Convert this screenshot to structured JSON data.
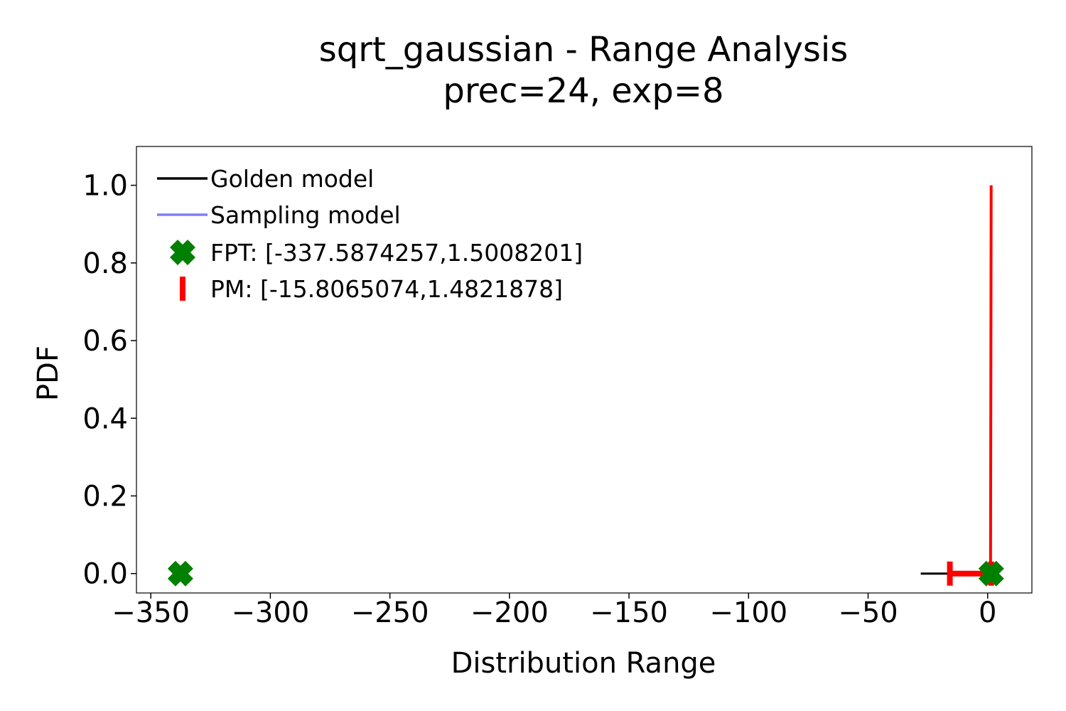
{
  "chart_data": {
    "type": "line",
    "title": [
      "sqrt_gaussian - Range Analysis",
      "prec=24, exp=8"
    ],
    "xlabel": "Distribution Range",
    "ylabel": "PDF",
    "xlim": [
      -356,
      18.5
    ],
    "ylim": [
      -0.05,
      1.1
    ],
    "x_ticks": [
      -350,
      -300,
      -250,
      -200,
      -150,
      -100,
      -50,
      0
    ],
    "x_tick_labels": [
      "−350",
      "−300",
      "−250",
      "−200",
      "−150",
      "−100",
      "−50",
      "0"
    ],
    "y_ticks": [
      0.0,
      0.2,
      0.4,
      0.6,
      0.8,
      1.0
    ],
    "y_tick_labels": [
      "0.0",
      "0.2",
      "0.4",
      "0.6",
      "0.8",
      "1.0"
    ],
    "grid": false,
    "legend_position": "top-left",
    "series": [
      {
        "name": "Golden model",
        "kind": "line",
        "color": "#000000",
        "x": [
          -28,
          -15.8,
          1.48
        ],
        "y": [
          0,
          0,
          0
        ]
      },
      {
        "name": "Sampling model",
        "kind": "line",
        "color": "#7f7fff",
        "x": [],
        "y": []
      },
      {
        "name": "FPT: [-337.5874257,1.5008201]",
        "kind": "markers",
        "marker": "X",
        "color": "#008000",
        "x": [
          -337.5874257,
          1.5008201
        ],
        "y": [
          0,
          0
        ]
      },
      {
        "name": "PM: [-15.8065074,1.4821878]",
        "kind": "interval",
        "marker": "|",
        "color": "#ff0000",
        "x": [
          -15.8065074,
          1.4821878
        ],
        "y": [
          0,
          0
        ]
      }
    ],
    "annotations": [
      {
        "kind": "spike",
        "color": "#ff0000",
        "x": [
          1.2,
          1.48
        ],
        "y": [
          0,
          1.0
        ]
      }
    ]
  }
}
